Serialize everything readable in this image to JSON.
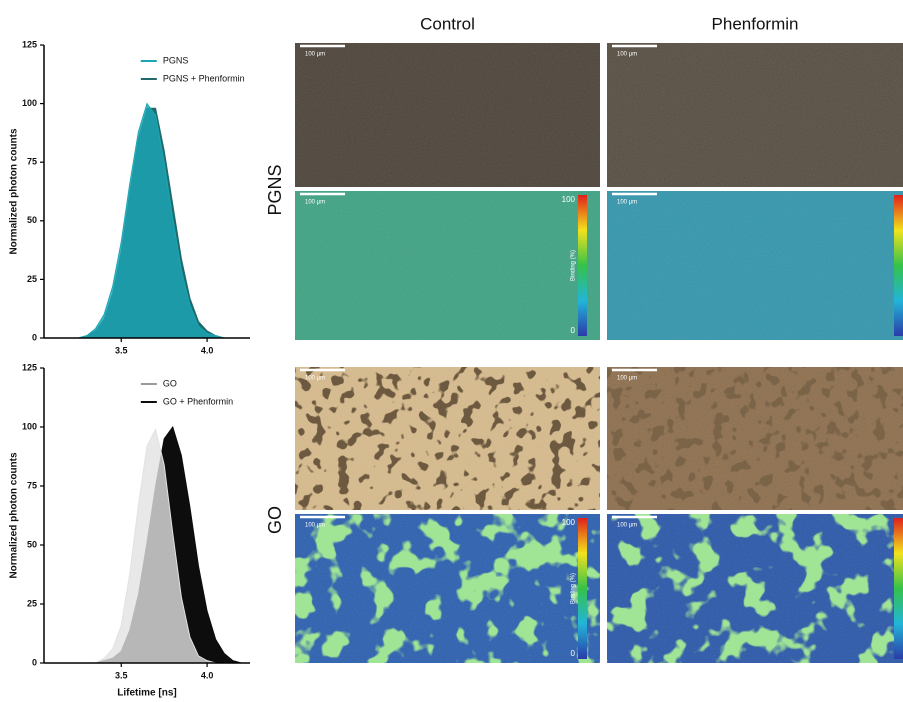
{
  "chart_data": [
    {
      "type": "area",
      "y_label": "Normalized photon counts",
      "x": [
        3.1,
        3.15,
        3.2,
        3.25,
        3.3,
        3.35,
        3.4,
        3.45,
        3.5,
        3.55,
        3.6,
        3.65,
        3.7,
        3.75,
        3.8,
        3.85,
        3.9,
        3.95,
        4.0,
        4.05,
        4.1,
        4.15,
        4.2,
        4.25
      ],
      "series": [
        {
          "name": "PGNS",
          "color": "#1ba6b6",
          "values": [
            0,
            0,
            0,
            0,
            1,
            4,
            10,
            22,
            41,
            66,
            88,
            100,
            95,
            75,
            51,
            29,
            14,
            5,
            2,
            1,
            0,
            0,
            0,
            0
          ]
        },
        {
          "name": "PGNS + Phenformin",
          "color": "#1f6b6c",
          "values": [
            0,
            0,
            0,
            0,
            1,
            3,
            8,
            19,
            37,
            62,
            85,
            98,
            98,
            80,
            57,
            34,
            17,
            7,
            3,
            1,
            0,
            0,
            0,
            0
          ]
        }
      ],
      "xlim": [
        3.05,
        4.25
      ],
      "xticks": [
        3.5,
        {
          "value": 4,
          "label": "4.0"
        }
      ],
      "ylim": [
        0,
        125
      ],
      "yticks": [
        0,
        25,
        50,
        75,
        100,
        125
      ],
      "legend": "upper center"
    },
    {
      "type": "area",
      "y_label": "Normalized photon counts",
      "x_label": "Lifetime [ns]",
      "x": [
        3.1,
        3.15,
        3.2,
        3.25,
        3.3,
        3.35,
        3.4,
        3.45,
        3.5,
        3.55,
        3.6,
        3.65,
        3.7,
        3.75,
        3.8,
        3.85,
        3.9,
        3.95,
        4.0,
        4.05,
        4.1,
        4.15,
        4.2,
        4.25
      ],
      "series": [
        {
          "name": "GO",
          "color": "#e2e2e2",
          "values": [
            0,
            0,
            0,
            0,
            0,
            0,
            2,
            6,
            16,
            38,
            67,
            92,
            99,
            84,
            55,
            28,
            11,
            3,
            1,
            0,
            0,
            0,
            0,
            0
          ]
        },
        {
          "name": "GO + Phenformin",
          "color": "#0d0d0d",
          "values": [
            0,
            0,
            0,
            0,
            0,
            0,
            1,
            2,
            5,
            14,
            29,
            51,
            75,
            95,
            100,
            88,
            66,
            41,
            22,
            10,
            4,
            1,
            0,
            0
          ]
        }
      ],
      "xlim": [
        3.05,
        4.25
      ],
      "xticks": [
        3.5,
        {
          "value": 4,
          "label": "4.0"
        }
      ],
      "ylim": [
        0,
        125
      ],
      "yticks": [
        0,
        25,
        50,
        75,
        100,
        125
      ],
      "legend": "upper center"
    }
  ],
  "image_panels": {
    "columns": [
      "Control",
      "Phenformin"
    ],
    "rows": [
      "PGNS",
      "GO"
    ],
    "scale_bar": "100 µm",
    "colorbar": {
      "max": "100",
      "min": "0",
      "label": "Binding (%)"
    }
  }
}
